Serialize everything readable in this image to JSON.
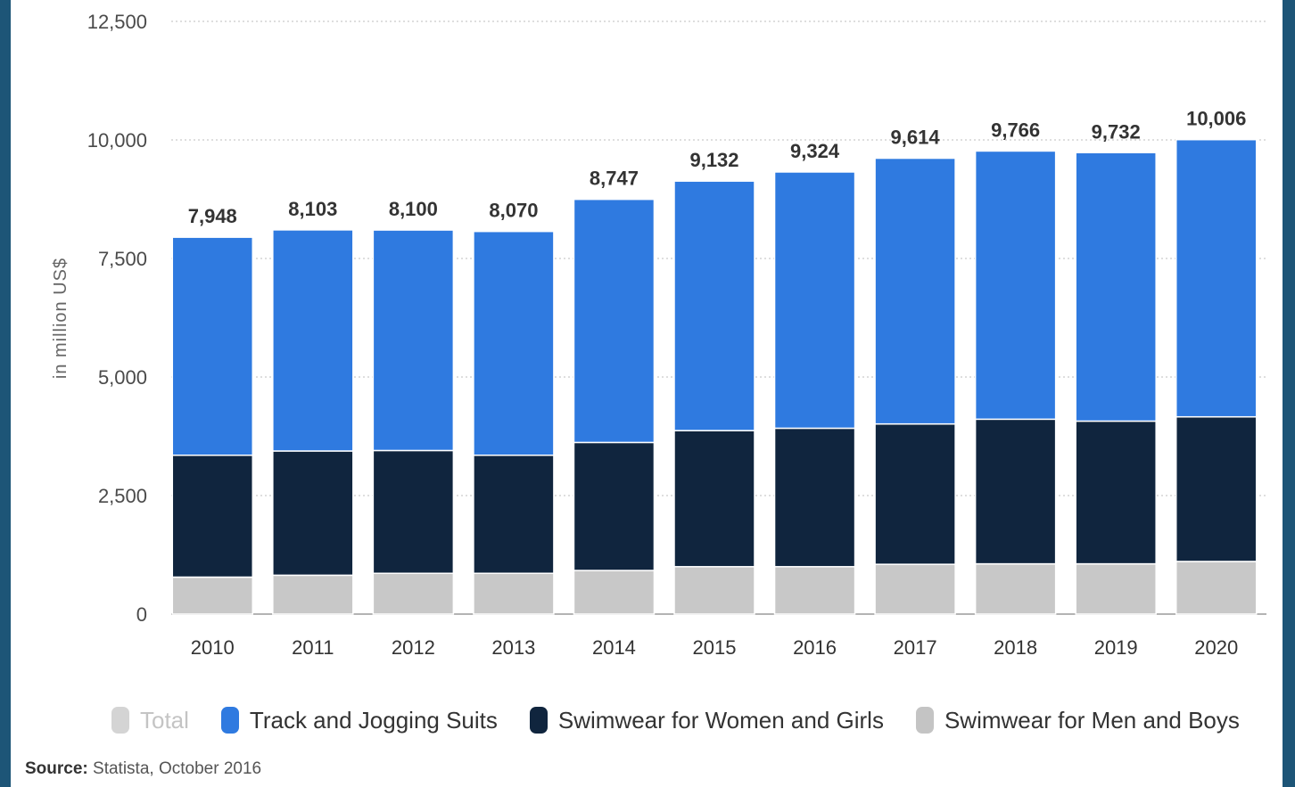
{
  "chart_data": {
    "type": "bar",
    "stacked": true,
    "categories": [
      "2010",
      "2011",
      "2012",
      "2013",
      "2014",
      "2015",
      "2016",
      "2017",
      "2018",
      "2019",
      "2020"
    ],
    "totals": [
      7948,
      8103,
      8100,
      8070,
      8747,
      9132,
      9324,
      9614,
      9766,
      9732,
      10006
    ],
    "total_labels": [
      "7,948",
      "8,103",
      "8,100",
      "8,070",
      "8,747",
      "9,132",
      "9,324",
      "9,614",
      "9,766",
      "9,732",
      "10,006"
    ],
    "series": [
      {
        "name": "Swimwear for Men and Boys",
        "color": "#c8c8c8",
        "values": [
          780,
          820,
          860,
          860,
          920,
          1000,
          1000,
          1050,
          1060,
          1060,
          1110
        ]
      },
      {
        "name": "Swimwear for Women and Girls",
        "color": "#10253e",
        "values": [
          2570,
          2620,
          2590,
          2490,
          2700,
          2870,
          2920,
          2960,
          3050,
          3010,
          3050
        ]
      },
      {
        "name": "Track and Jogging Suits",
        "color": "#2f7ae0",
        "values": [
          4598,
          4663,
          4650,
          4720,
          5127,
          5262,
          5404,
          5604,
          5656,
          5662,
          5846
        ]
      }
    ],
    "ylabel": "in million US$",
    "ylim": [
      0,
      12500
    ],
    "yticks": [
      0,
      2500,
      5000,
      7500,
      10000,
      12500
    ],
    "ytick_labels": [
      "0",
      "2,500",
      "5,000",
      "7,500",
      "10,000",
      "12,500"
    ],
    "grid": true,
    "legend_position": "bottom"
  },
  "legend": [
    {
      "label": "Total",
      "color": "#d4d4d4",
      "muted": true
    },
    {
      "label": "Track and Jogging Suits",
      "color": "#2f7ae0",
      "muted": false
    },
    {
      "label": "Swimwear for Women and Girls",
      "color": "#10253e",
      "muted": false
    },
    {
      "label": "Swimwear for Men and Boys",
      "color": "#c4c4c4",
      "muted": false
    }
  ],
  "source": {
    "prefix": "Source:",
    "text": " Statista, October 2016"
  }
}
